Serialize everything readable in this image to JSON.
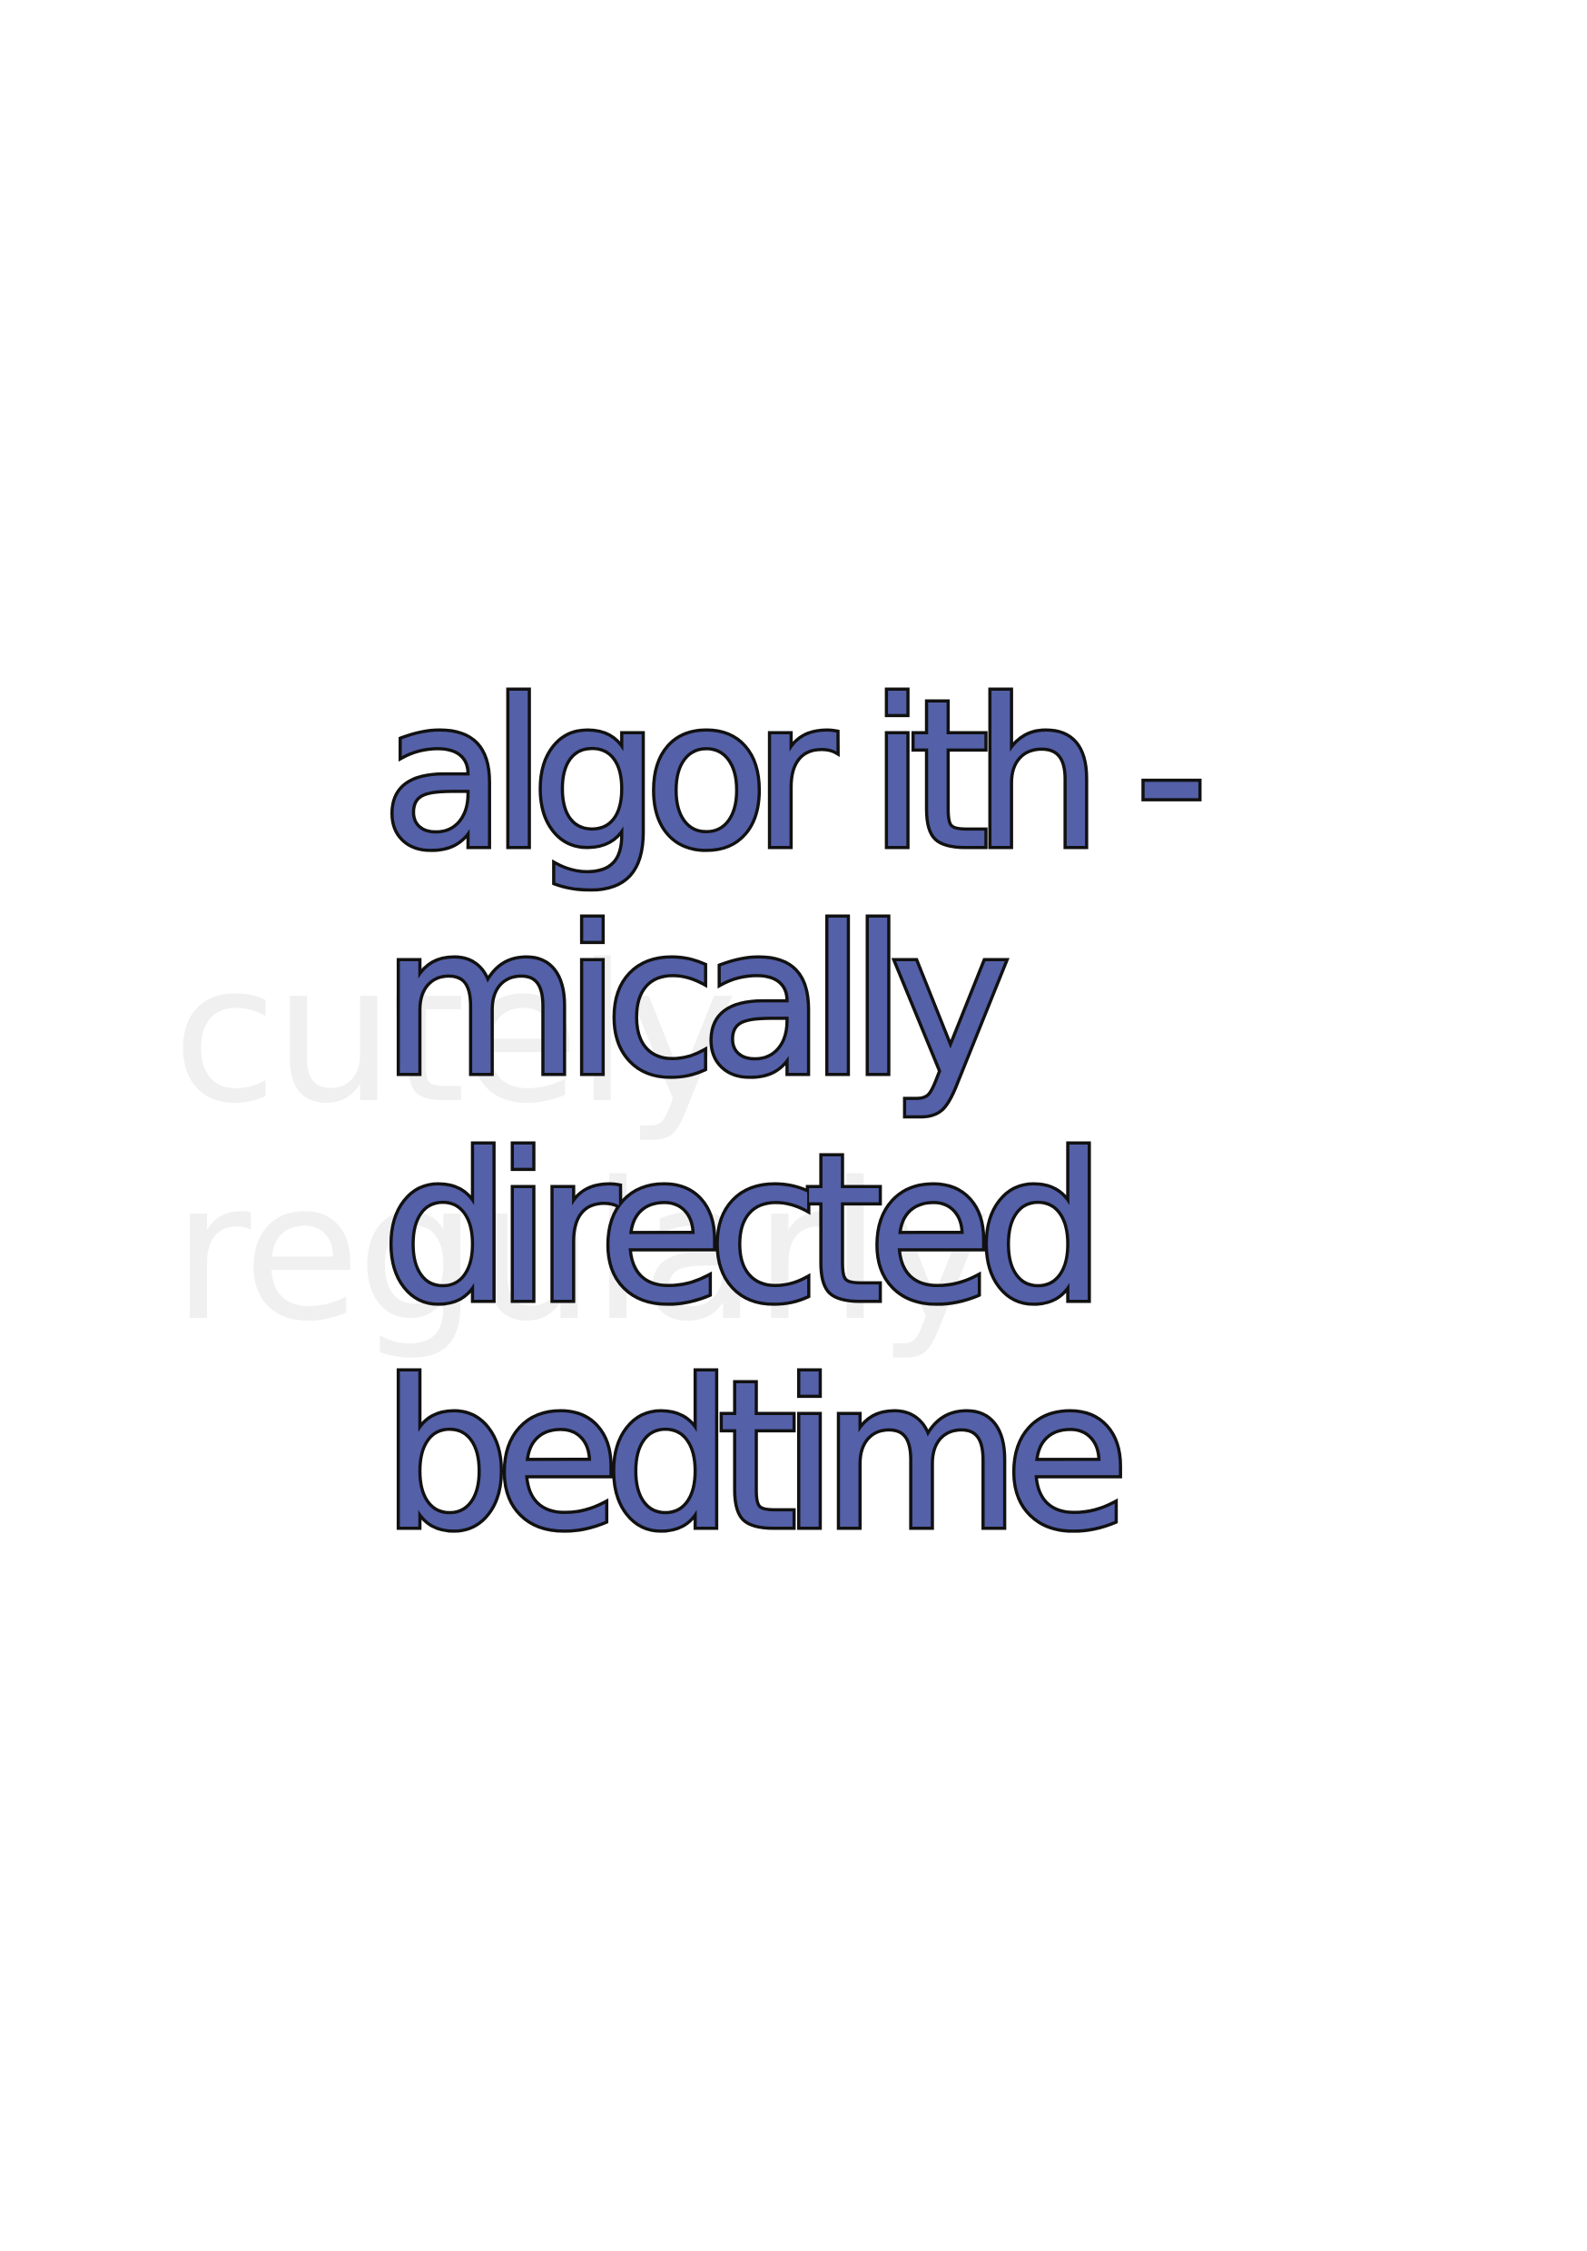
{
  "background_text": {
    "line1": "cutely",
    "line2": "regularly"
  },
  "main_text": {
    "line1": "algor ith -",
    "line2": "mically",
    "line3": "directed",
    "line4": "bedtime"
  },
  "colors": {
    "main_fill": "#5460a8",
    "outline": "#111111",
    "ghost": "#f0f0f1",
    "background": "#ffffff"
  }
}
